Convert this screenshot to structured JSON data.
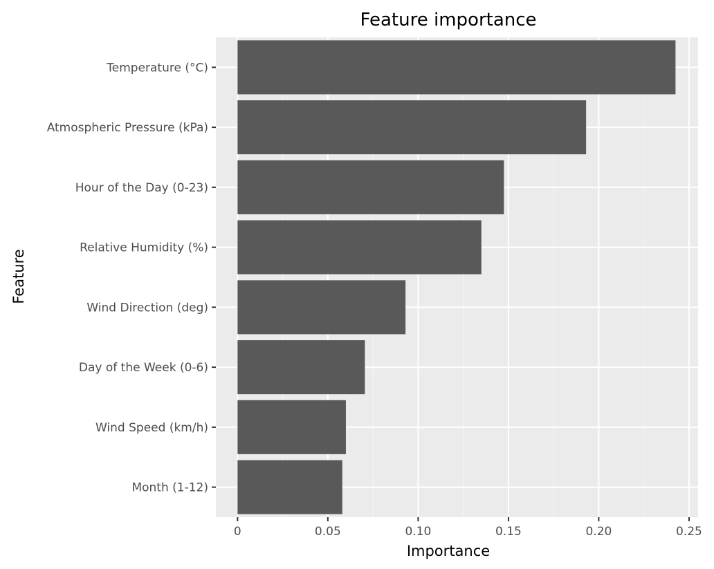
{
  "chart_data": {
    "type": "bar",
    "orientation": "horizontal",
    "title": "Feature importance",
    "xlabel": "Importance",
    "ylabel": "Feature",
    "categories": [
      "Temperature (°C)",
      "Atmospheric Pressure (kPa)",
      "Hour of the Day (0-23)",
      "Relative Humidity (%)",
      "Wind Direction (deg)",
      "Day of the Week (0-6)",
      "Wind Speed (km/h)",
      "Month (1-12)"
    ],
    "values": [
      0.2425,
      0.193,
      0.1475,
      0.135,
      0.093,
      0.0705,
      0.06,
      0.058
    ],
    "xlim": [
      -0.012,
      0.255
    ],
    "xticks": [
      0,
      0.05,
      0.1,
      0.15,
      0.2,
      0.25
    ],
    "xtick_labels": [
      "0",
      "0.05",
      "0.10",
      "0.15",
      "0.20",
      "0.25"
    ],
    "grid": true,
    "colors": {
      "bar": "#595959",
      "panel": "#ebebeb",
      "grid_major": "#ffffff",
      "grid_minor": "#f5f5f5",
      "tick_text": "#4d4d4d",
      "text": "#000000"
    }
  }
}
